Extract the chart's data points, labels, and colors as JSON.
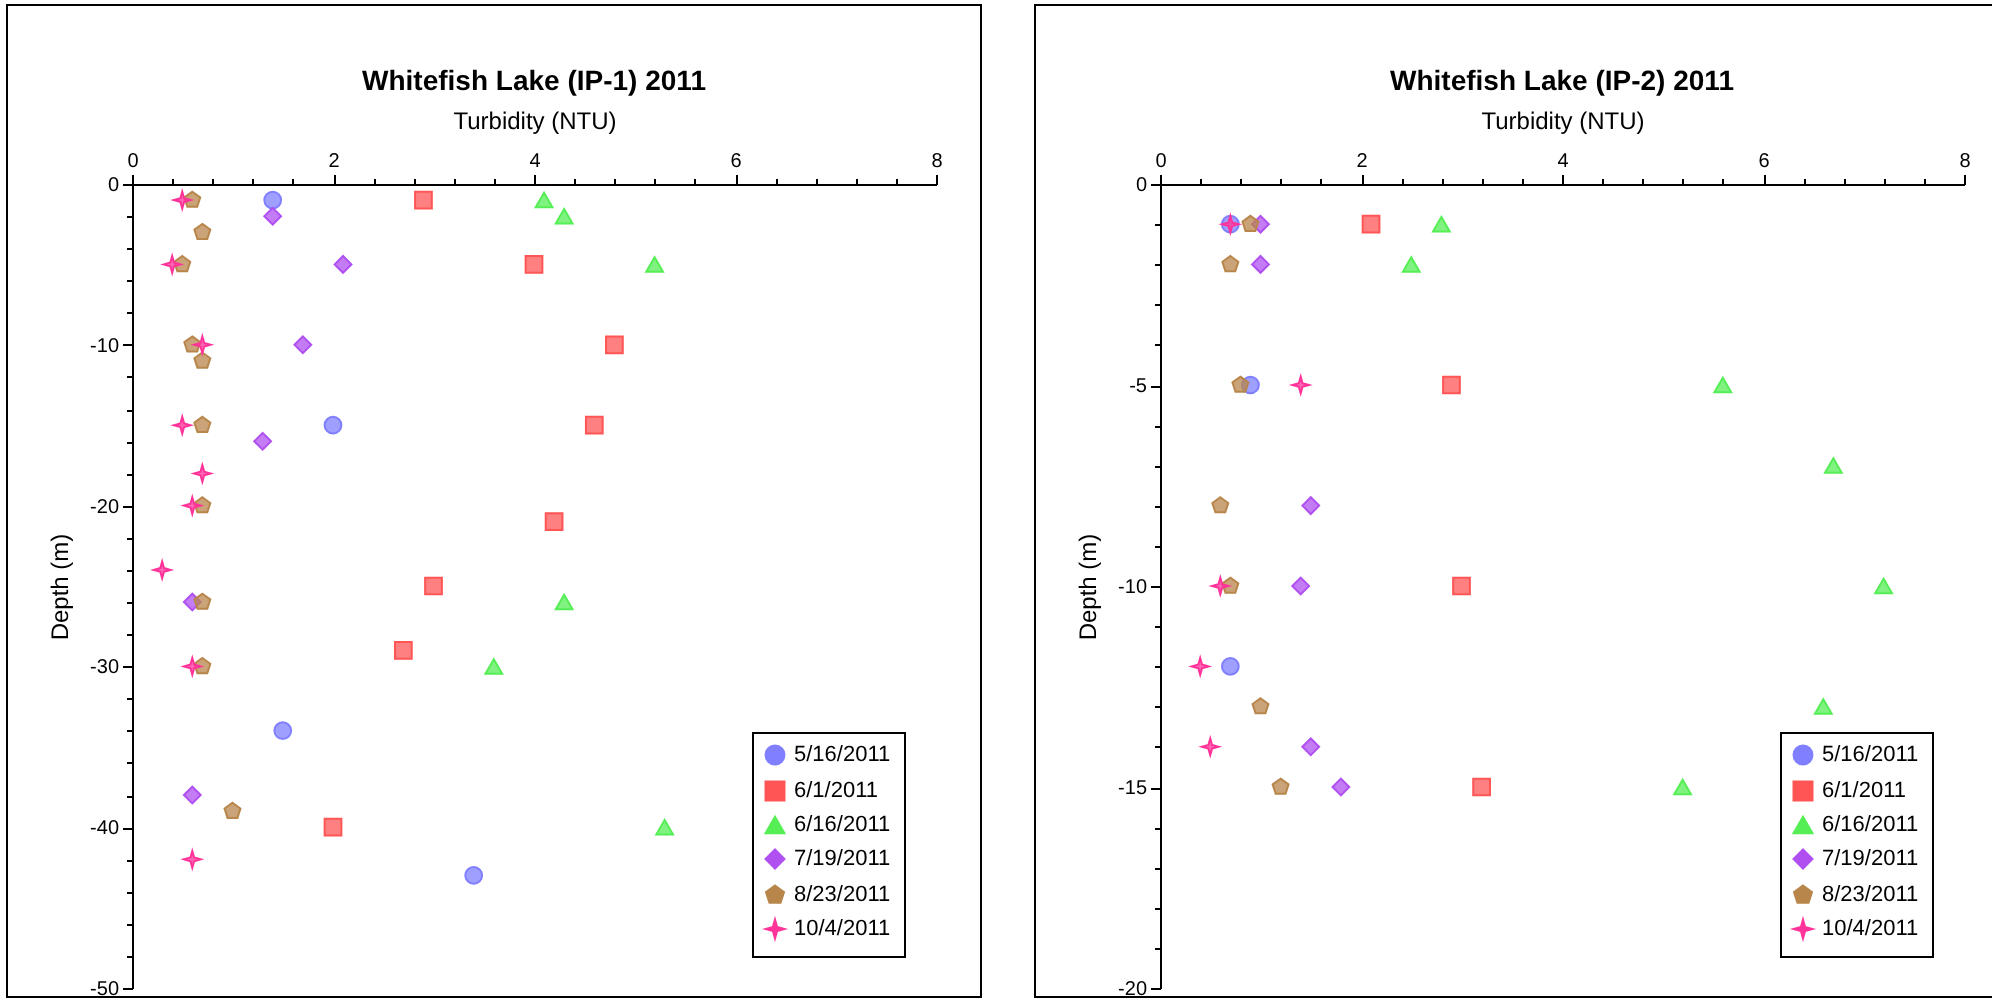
{
  "chart_data": [
    {
      "type": "scatter",
      "title": "Whitefish Lake (IP-1) 2011",
      "xlabel": "Turbidity (NTU)",
      "ylabel": "Depth (m)",
      "grid": false,
      "legend": "bottom right",
      "xlim": [
        0,
        8
      ],
      "xticks": [
        0,
        {
          "value": 0.4,
          "label": null
        },
        {
          "value": 0.8,
          "label": null
        },
        {
          "value": 1.2,
          "label": null
        },
        {
          "value": 1.6,
          "label": null
        },
        2,
        {
          "value": 2.4,
          "label": null
        },
        {
          "value": 2.8,
          "label": null
        },
        {
          "value": 3.2,
          "label": null
        },
        {
          "value": 3.6,
          "label": null
        },
        4,
        {
          "value": 4.4,
          "label": null
        },
        {
          "value": 4.8,
          "label": null
        },
        {
          "value": 5.2,
          "label": null
        },
        {
          "value": 5.6,
          "label": null
        },
        6,
        {
          "value": 6.4,
          "label": null
        },
        {
          "value": 6.8,
          "label": null
        },
        {
          "value": 7.2,
          "label": null
        },
        {
          "value": 7.6,
          "label": null
        },
        8
      ],
      "ylim": [
        -50,
        0
      ],
      "yticks": [
        0,
        {
          "value": -2,
          "label": null
        },
        {
          "value": -4,
          "label": null
        },
        {
          "value": -6,
          "label": null
        },
        {
          "value": -8,
          "label": null
        },
        -10,
        {
          "value": -12,
          "label": null
        },
        {
          "value": -14,
          "label": null
        },
        {
          "value": -16,
          "label": null
        },
        {
          "value": -18,
          "label": null
        },
        -20,
        {
          "value": -22,
          "label": null
        },
        {
          "value": -24,
          "label": null
        },
        {
          "value": -26,
          "label": null
        },
        {
          "value": -28,
          "label": null
        },
        -30,
        {
          "value": -32,
          "label": null
        },
        {
          "value": -34,
          "label": null
        },
        {
          "value": -36,
          "label": null
        },
        {
          "value": -38,
          "label": null
        },
        -40,
        {
          "value": -42,
          "label": null
        },
        {
          "value": -44,
          "label": null
        },
        {
          "value": -46,
          "label": null
        },
        {
          "value": -48,
          "label": null
        },
        -50
      ],
      "series": [
        {
          "name": "5/16/2011",
          "color": "#7f7fff",
          "marker": "circle",
          "x": [
            1.4,
            2.0,
            1.5,
            3.4
          ],
          "values": [
            -1,
            -15,
            -34,
            -43
          ]
        },
        {
          "name": "6/1/2011",
          "color": "#ff5555",
          "marker": "square",
          "x": [
            2.9,
            4.0,
            4.8,
            4.6,
            4.2,
            3.0,
            2.7,
            2.0
          ],
          "values": [
            -1,
            -5,
            -10,
            -15,
            -21,
            -25,
            -29,
            -40
          ]
        },
        {
          "name": "6/16/2011",
          "color": "#55ee55",
          "marker": "triangle",
          "x": [
            4.1,
            4.3,
            5.2,
            4.3,
            3.6,
            5.3
          ],
          "values": [
            -1,
            -2,
            -5,
            -26,
            -30,
            -40
          ]
        },
        {
          "name": "7/19/2011",
          "color": "#b050f0",
          "marker": "diamond",
          "x": [
            1.4,
            2.1,
            1.7,
            1.3,
            0.6,
            0.6
          ],
          "values": [
            -2,
            -5,
            -10,
            -16,
            -26,
            -38
          ]
        },
        {
          "name": "8/23/2011",
          "color": "#b8864b",
          "x": [
            0.6,
            0.7,
            0.5,
            0.6,
            0.7,
            0.7,
            0.7,
            0.7,
            0.7,
            1.0
          ],
          "values": [
            -1,
            -3,
            -5,
            -10,
            -11,
            -15,
            -20,
            -26,
            -30,
            -39
          ]
        },
        {
          "name": "10/4/2011",
          "color": "#ff3399",
          "marker": "star",
          "x": [
            0.5,
            0.4,
            0.7,
            0.5,
            0.7,
            0.6,
            0.3,
            0.6,
            0.6
          ],
          "values": [
            -1,
            -5,
            -10,
            -15,
            -18,
            -20,
            -24,
            -30,
            -42
          ]
        }
      ]
    },
    {
      "type": "scatter",
      "title": "Whitefish Lake (IP-2) 2011",
      "xlabel": "Turbidity (NTU)",
      "ylabel": "Depth (m)",
      "grid": false,
      "legend": "bottom right",
      "xlim": [
        0,
        8
      ],
      "xticks": [
        0,
        {
          "value": 0.4,
          "label": null
        },
        {
          "value": 0.8,
          "label": null
        },
        {
          "value": 1.2,
          "label": null
        },
        {
          "value": 1.6,
          "label": null
        },
        2,
        {
          "value": 2.4,
          "label": null
        },
        {
          "value": 2.8,
          "label": null
        },
        {
          "value": 3.2,
          "label": null
        },
        {
          "value": 3.6,
          "label": null
        },
        4,
        {
          "value": 4.4,
          "label": null
        },
        {
          "value": 4.8,
          "label": null
        },
        {
          "value": 5.2,
          "label": null
        },
        {
          "value": 5.6,
          "label": null
        },
        6,
        {
          "value": 6.4,
          "label": null
        },
        {
          "value": 6.8,
          "label": null
        },
        {
          "value": 7.2,
          "label": null
        },
        {
          "value": 7.6,
          "label": null
        },
        8
      ],
      "ylim": [
        -20,
        0
      ],
      "yticks": [
        0,
        {
          "value": -1,
          "label": null
        },
        {
          "value": -2,
          "label": null
        },
        {
          "value": -3,
          "label": null
        },
        {
          "value": -4,
          "label": null
        },
        -5,
        {
          "value": -6,
          "label": null
        },
        {
          "value": -7,
          "label": null
        },
        {
          "value": -8,
          "label": null
        },
        {
          "value": -9,
          "label": null
        },
        -10,
        {
          "value": -11,
          "label": null
        },
        {
          "value": -12,
          "label": null
        },
        {
          "value": -13,
          "label": null
        },
        {
          "value": -14,
          "label": null
        },
        -15,
        {
          "value": -16,
          "label": null
        },
        {
          "value": -17,
          "label": null
        },
        {
          "value": -18,
          "label": null
        },
        {
          "value": -19,
          "label": null
        },
        -20
      ],
      "series": [
        {
          "name": "5/16/2011",
          "color": "#7f7fff",
          "marker": "circle",
          "x": [
            0.7,
            0.9,
            0.7
          ],
          "values": [
            -1,
            -5,
            -12
          ]
        },
        {
          "name": "6/1/2011",
          "color": "#ff5555",
          "marker": "square",
          "x": [
            2.1,
            2.9,
            3.0,
            3.2
          ],
          "values": [
            -1,
            -5,
            -10,
            -15
          ]
        },
        {
          "name": "6/16/2011",
          "color": "#55ee55",
          "marker": "triangle",
          "x": [
            2.8,
            2.5,
            5.6,
            6.7,
            7.2,
            6.6,
            5.2
          ],
          "values": [
            -1,
            -2,
            -5,
            -7,
            -10,
            -13,
            -15
          ]
        },
        {
          "name": "7/19/2011",
          "color": "#b050f0",
          "marker": "diamond",
          "x": [
            1.0,
            1.0,
            1.5,
            1.4,
            1.5,
            1.8
          ],
          "values": [
            -1,
            -2,
            -8,
            -10,
            -14,
            -15
          ]
        },
        {
          "name": "8/23/2011",
          "color": "#b8864b",
          "x": [
            0.9,
            0.7,
            0.8,
            0.6,
            0.7,
            1.0,
            1.2
          ],
          "values": [
            -1,
            -2,
            -5,
            -8,
            -10,
            -13,
            -15
          ]
        },
        {
          "name": "10/4/2011",
          "color": "#ff3399",
          "marker": "star",
          "x": [
            0.7,
            1.4,
            0.6,
            0.4,
            0.5
          ],
          "values": [
            -1,
            -5,
            -10,
            -12,
            -14
          ]
        }
      ]
    }
  ]
}
